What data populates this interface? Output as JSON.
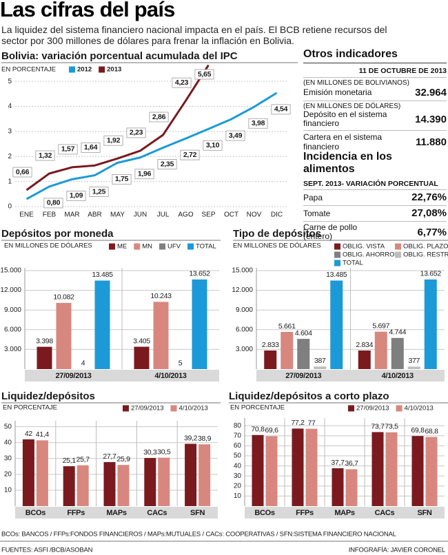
{
  "header": {
    "title": "Las cifras del país",
    "subtitle": "La liquidez del sistema financiero nacional impacta en el  país. El BCB retiene recursos del sector por 300 millones de dólares para frenar la inflación en Bolivia."
  },
  "chart_data": [
    {
      "type": "line",
      "title": "Bolivia: variación porcentual acumulada del IPC",
      "subtitle": "EN PORCENTAJE",
      "categories": [
        "ENE",
        "FEB",
        "MAR",
        "ABR",
        "MAY",
        "JUN",
        "JUL",
        "AGO",
        "SEP",
        "OCT",
        "NOV",
        "DIC"
      ],
      "series": [
        {
          "name": "2012",
          "color": "#1b9ad7",
          "values": [
            0.3,
            0.8,
            1.09,
            1.25,
            1.75,
            1.96,
            2.35,
            2.72,
            3.1,
            3.49,
            3.98,
            4.54
          ],
          "value_labels": [
            null,
            "0,80",
            "1,09",
            "1,25",
            "1,75",
            "1,96",
            "2,35",
            "2,72",
            "3,10",
            "3,49",
            "3,98",
            "4,54"
          ]
        },
        {
          "name": "2013",
          "color": "#7a1a1f",
          "values": [
            0.66,
            1.32,
            1.57,
            1.64,
            1.92,
            2.23,
            2.86,
            4.23,
            5.65,
            null,
            null,
            null
          ],
          "value_labels": [
            "0,66",
            "1,32",
            "1,57",
            "1,64",
            "1,92",
            "2,23",
            "2,86",
            "4,23",
            "5,65",
            null,
            null,
            null
          ]
        }
      ],
      "ylim": [
        0,
        5.5
      ],
      "yticks": [
        0,
        1,
        2,
        3,
        4,
        5
      ],
      "grid": true
    },
    {
      "type": "bar",
      "title": "Depósitos por moneda",
      "subtitle": "EN MILLONES DE DÓLARES",
      "categories": [
        "27/09/2013",
        "4/10/2013"
      ],
      "series": [
        {
          "name": "ME",
          "color": "#7a1a1f",
          "values": [
            3398,
            3405
          ],
          "value_labels": [
            "3.398",
            "3.405"
          ]
        },
        {
          "name": "MN",
          "color": "#d8877f",
          "values": [
            10082,
            10243
          ],
          "value_labels": [
            "10.082",
            "10.243"
          ]
        },
        {
          "name": "UFV",
          "color": "#7f7f7f",
          "values": [
            4,
            5
          ],
          "value_labels": [
            "4",
            "5"
          ]
        },
        {
          "name": "TOTAL",
          "color": "#1b9ad7",
          "values": [
            13485,
            13652
          ],
          "value_labels": [
            "13.485",
            "13.652"
          ]
        }
      ],
      "ylim": [
        0,
        15000
      ],
      "yticks": [
        {
          "value": 3000,
          "label": "3.000"
        },
        {
          "value": 6000,
          "label": "6.000"
        },
        {
          "value": 9000,
          "label": "9.000"
        },
        {
          "value": 12000,
          "label": "12.000"
        },
        {
          "value": 15000,
          "label": "15.000"
        }
      ],
      "grid": true
    },
    {
      "type": "bar",
      "title": "Tipo de depósitos",
      "subtitle": "EN MILLONES DE DÓLARES",
      "categories": [
        "27/09/2013",
        "4/10/2013"
      ],
      "series": [
        {
          "name": "OBLIG. VISTA",
          "color": "#7a1a1f",
          "values": [
            2833,
            2834
          ],
          "value_labels": [
            "2.833",
            "2.834"
          ]
        },
        {
          "name": "OBLIG. PLAZO",
          "color": "#d8877f",
          "values": [
            5661,
            5697
          ],
          "value_labels": [
            "5.661",
            "5.697"
          ]
        },
        {
          "name": "OBLIG. AHORRO",
          "color": "#7f7f7f",
          "values": [
            4604,
            4744
          ],
          "value_labels": [
            "4.604",
            "4.744"
          ]
        },
        {
          "name": "OBLIG. RESTR.",
          "color": "#bdbdbd",
          "values": [
            387,
            377
          ],
          "value_labels": [
            "387",
            "377"
          ]
        },
        {
          "name": "TOTAL",
          "color": "#1b9ad7",
          "values": [
            13485,
            13652
          ],
          "value_labels": [
            "13.485",
            "13.652"
          ]
        }
      ],
      "ylim": [
        0,
        15000
      ],
      "yticks": [
        {
          "value": 3000,
          "label": "3.000"
        },
        {
          "value": 6000,
          "label": "6.000"
        },
        {
          "value": 9000,
          "label": "9.000"
        },
        {
          "value": 12000,
          "label": "12.000"
        },
        {
          "value": 15000,
          "label": "15.000"
        }
      ],
      "grid": true
    },
    {
      "type": "bar",
      "title": "Liquidez/depósitos",
      "subtitle": "EN PORCENTAJE",
      "categories": [
        "BCOs",
        "FFPs",
        "MAPs",
        "CACs",
        "SFN"
      ],
      "series": [
        {
          "name": "27/09/2013",
          "color": "#7a1a1f",
          "values": [
            42,
            25.1,
            27.7,
            30.3,
            39.2
          ],
          "value_labels": [
            "42",
            "25,1",
            "27,7",
            "30,3",
            "39,2"
          ]
        },
        {
          "name": "4/10/2013",
          "color": "#d8877f",
          "values": [
            41.4,
            25.7,
            25.9,
            30.5,
            38.9
          ],
          "value_labels": [
            "41,4",
            "25,7",
            "25,9",
            "30,5",
            "38,9"
          ]
        }
      ],
      "ylim": [
        0,
        52
      ],
      "yticks": [
        10,
        20,
        30,
        40,
        50
      ],
      "grid": true
    },
    {
      "type": "bar",
      "title": "Liquidez/depósitos a corto plazo",
      "subtitle": "EN PORCENTAJE",
      "categories": [
        "BCOs",
        "FFPs",
        "MAPs",
        "CACs",
        "SFN"
      ],
      "series": [
        {
          "name": "27/09/2013",
          "color": "#7a1a1f",
          "values": [
            70.8,
            77.2,
            37.7,
            73.7,
            69.8
          ],
          "value_labels": [
            "70,8",
            "77,2",
            "37,7",
            "73,7",
            "69,8"
          ]
        },
        {
          "name": "4/10/2013",
          "color": "#d8877f",
          "values": [
            69.6,
            77,
            36.7,
            73.5,
            68.8
          ],
          "value_labels": [
            "69,6",
            "77",
            "36,7",
            "73,5",
            "68,8"
          ]
        }
      ],
      "ylim": [
        0,
        85
      ],
      "yticks": [
        10,
        20,
        30,
        40,
        50,
        60,
        70,
        80
      ],
      "grid": true
    }
  ],
  "otros": {
    "title": "Otros indicadores",
    "date": "11 DE OCTUBRE DE 2013",
    "items": [
      {
        "note": "(EN MILLONES DE BOLIVIANOS)",
        "label": "Emisión monetaria",
        "value": "32.964"
      },
      {
        "note": "(EN MILLONES DE DÓLARES)",
        "label": "Depósito en el sistema financiero",
        "value": "14.390"
      },
      {
        "label": "Cartera en el sistema financiero",
        "value": "11.880"
      }
    ]
  },
  "incidencia": {
    "title": "Incidencia en los alimentos",
    "subtitle": "SEPT. 2013- VARIACIÓN PORCENTUAL",
    "items": [
      {
        "label": "Papa",
        "value": "22,76%"
      },
      {
        "label": "Tomate",
        "value": "27,08%"
      },
      {
        "label": "Carne de pollo (entero)",
        "value": "6,77%"
      }
    ]
  },
  "footer": {
    "note": "BCOs: BANCOS / FFPs:FONDOS FINANCIEROS / MAPs:MUTUALES / CACs: COOPERATIVAS / SFN:SISTEMA FINANCIERO NACIONAL",
    "sources": "FUENTES: ASFI /BCB/ASOBAN",
    "credit": "INFOGRAFÍA: JAVIER CORONEL"
  }
}
